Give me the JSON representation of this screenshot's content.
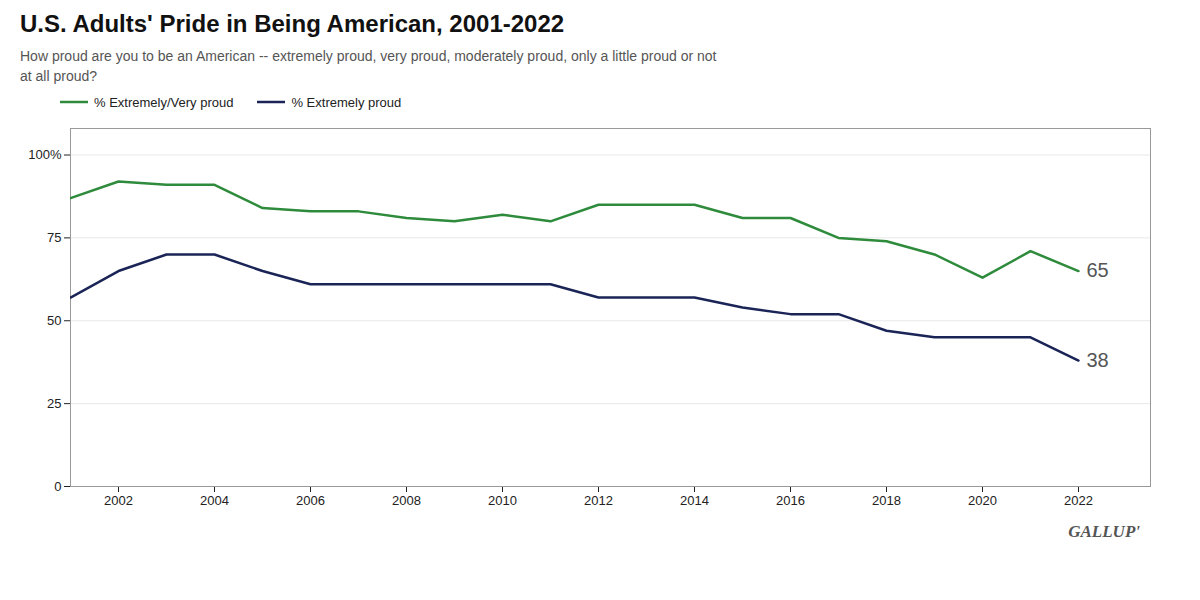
{
  "chart_data": {
    "type": "line",
    "title": "U.S. Adults' Pride in Being American, 2001-2022",
    "subtitle": "How proud are you to be an American -- extremely proud, very proud, moderately proud, only a little proud or not\nat all proud?",
    "caption": "GALLUPʹ",
    "x": [
      2001,
      2002,
      2003,
      2004,
      2005,
      2006,
      2007,
      2008,
      2009,
      2010,
      2011,
      2012,
      2013,
      2014,
      2015,
      2016,
      2017,
      2018,
      2019,
      2020,
      2021,
      2022
    ],
    "series": [
      {
        "name": "% Extremely/Very proud",
        "color": "#2e8b3c",
        "values": [
          87,
          92,
          91,
          91,
          84,
          83,
          83,
          81,
          80,
          82,
          80,
          85,
          85,
          85,
          81,
          81,
          75,
          74,
          70,
          63,
          71,
          65
        ]
      },
      {
        "name": "% Extremely proud",
        "color": "#1a2456",
        "values": [
          57,
          65,
          70,
          70,
          65,
          61,
          61,
          61,
          61,
          61,
          61,
          57,
          57,
          57,
          54,
          52,
          52,
          47,
          45,
          45,
          45,
          38
        ]
      }
    ],
    "annotations": [
      {
        "text": "65",
        "x": 2022,
        "y": 65
      },
      {
        "text": "38",
        "x": 2022,
        "y": 38
      }
    ],
    "xlim": [
      2001,
      2023.5
    ],
    "xticks": [
      2002,
      2004,
      2006,
      2008,
      2010,
      2012,
      2014,
      2016,
      2018,
      2020,
      2022
    ],
    "ylim": [
      0,
      108
    ],
    "yticks": [
      0,
      25,
      50,
      75,
      {
        "value": 100,
        "label": "100%"
      }
    ],
    "grid": true,
    "legend": "top-left"
  }
}
